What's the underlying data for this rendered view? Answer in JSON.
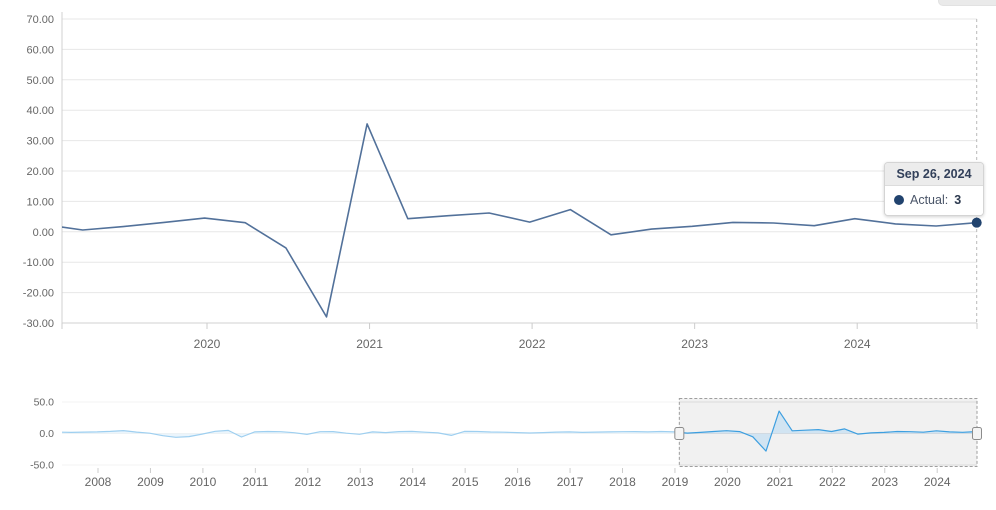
{
  "tooltip": {
    "date": "Sep 26, 2024",
    "series_label": "Actual:",
    "value": "3"
  },
  "highlighted_point": {
    "date": "2024-09-26",
    "value": 3
  },
  "colors": {
    "main_line": "#52719a",
    "marker": "#21436e",
    "nav_line": "#3d9fe0",
    "nav_fill": "#bcdcf4",
    "grid": "#e7e7e7",
    "axis": "#d0d0d0",
    "tick": "#cccccc",
    "label": "#666666",
    "crosshair": "#b9b9b9",
    "selection_border": "#9e9e9e",
    "tooltip_header_bg": "#ececec"
  },
  "chart_data": {
    "type": "line",
    "title": "",
    "legend": "none",
    "grid": "on",
    "main_chart": {
      "series_name": "Actual",
      "ylim": [
        -30,
        70
      ],
      "y_tick_labels": [
        "70.00",
        "60.00",
        "50.00",
        "40.00",
        "30.00",
        "20.00",
        "10.00",
        "0.00",
        "-10.00",
        "-20.00",
        "-30.00"
      ],
      "x_tick_labels": [
        "2020",
        "2021",
        "2022",
        "2023",
        "2024"
      ],
      "points": [
        {
          "date": "2018-12-26",
          "value": 2.5
        },
        {
          "date": "2019-03-26",
          "value": 0.6
        },
        {
          "date": "2019-06-26",
          "value": 1.7
        },
        {
          "date": "2019-09-26",
          "value": 3.1
        },
        {
          "date": "2019-12-26",
          "value": 4.5
        },
        {
          "date": "2020-03-26",
          "value": 3.0
        },
        {
          "date": "2020-06-26",
          "value": -5.3
        },
        {
          "date": "2020-09-26",
          "value": -28.0
        },
        {
          "date": "2020-12-26",
          "value": 35.5
        },
        {
          "date": "2021-03-26",
          "value": 4.3
        },
        {
          "date": "2021-06-26",
          "value": 5.3
        },
        {
          "date": "2021-09-26",
          "value": 6.2
        },
        {
          "date": "2021-12-26",
          "value": 3.2
        },
        {
          "date": "2022-03-26",
          "value": 7.3
        },
        {
          "date": "2022-06-26",
          "value": -1.0
        },
        {
          "date": "2022-09-26",
          "value": 0.9
        },
        {
          "date": "2022-12-26",
          "value": 1.8
        },
        {
          "date": "2023-03-26",
          "value": 3.1
        },
        {
          "date": "2023-06-26",
          "value": 2.9
        },
        {
          "date": "2023-09-26",
          "value": 2.0
        },
        {
          "date": "2023-12-26",
          "value": 4.3
        },
        {
          "date": "2024-03-26",
          "value": 2.6
        },
        {
          "date": "2024-06-26",
          "value": 1.9
        },
        {
          "date": "2024-09-26",
          "value": 3.0
        }
      ]
    },
    "navigator": {
      "ylim": [
        -50,
        50
      ],
      "y_tick_labels": [
        "50.0",
        "0.0",
        "-50.0"
      ],
      "x_tick_labels": [
        "2008",
        "2009",
        "2010",
        "2011",
        "2012",
        "2013",
        "2014",
        "2015",
        "2016",
        "2017",
        "2018",
        "2019",
        "2020",
        "2021",
        "2022",
        "2023",
        "2024"
      ],
      "selected_from": "2019-02-01",
      "selected_to": "2024-09-26",
      "history_points": [
        {
          "date": "2007-03-26",
          "value": 2.2
        },
        {
          "date": "2007-06-26",
          "value": 1.8
        },
        {
          "date": "2007-09-26",
          "value": 2.3
        },
        {
          "date": "2007-12-26",
          "value": 2.6
        },
        {
          "date": "2008-03-26",
          "value": 3.4
        },
        {
          "date": "2008-06-26",
          "value": 4.6
        },
        {
          "date": "2008-09-26",
          "value": 2.2
        },
        {
          "date": "2008-12-26",
          "value": 0.5
        },
        {
          "date": "2009-03-26",
          "value": -3.5
        },
        {
          "date": "2009-06-26",
          "value": -6.0
        },
        {
          "date": "2009-09-26",
          "value": -5.0
        },
        {
          "date": "2009-12-26",
          "value": -1.0
        },
        {
          "date": "2010-03-26",
          "value": 3.5
        },
        {
          "date": "2010-06-26",
          "value": 5.0
        },
        {
          "date": "2010-09-26",
          "value": -5.5
        },
        {
          "date": "2010-12-26",
          "value": 2.5
        },
        {
          "date": "2011-03-26",
          "value": 3.2
        },
        {
          "date": "2011-06-26",
          "value": 2.8
        },
        {
          "date": "2011-09-26",
          "value": 1.2
        },
        {
          "date": "2011-12-26",
          "value": -1.5
        },
        {
          "date": "2012-03-26",
          "value": 2.8
        },
        {
          "date": "2012-06-26",
          "value": 3.0
        },
        {
          "date": "2012-09-26",
          "value": 0.5
        },
        {
          "date": "2012-12-26",
          "value": -1.2
        },
        {
          "date": "2013-03-26",
          "value": 2.5
        },
        {
          "date": "2013-06-26",
          "value": 1.4
        },
        {
          "date": "2013-09-26",
          "value": 3.0
        },
        {
          "date": "2013-12-26",
          "value": 3.4
        },
        {
          "date": "2014-03-26",
          "value": 2.0
        },
        {
          "date": "2014-06-26",
          "value": 1.0
        },
        {
          "date": "2014-09-26",
          "value": -3.0
        },
        {
          "date": "2014-12-26",
          "value": 3.4
        },
        {
          "date": "2015-03-26",
          "value": 3.2
        },
        {
          "date": "2015-06-26",
          "value": 2.4
        },
        {
          "date": "2015-09-26",
          "value": 2.0
        },
        {
          "date": "2015-12-26",
          "value": 1.4
        },
        {
          "date": "2016-03-26",
          "value": 0.8
        },
        {
          "date": "2016-06-26",
          "value": 1.5
        },
        {
          "date": "2016-09-26",
          "value": 2.2
        },
        {
          "date": "2016-12-26",
          "value": 2.5
        },
        {
          "date": "2017-03-26",
          "value": 1.8
        },
        {
          "date": "2017-06-26",
          "value": 2.2
        },
        {
          "date": "2017-09-26",
          "value": 2.6
        },
        {
          "date": "2017-12-26",
          "value": 2.9
        },
        {
          "date": "2018-03-26",
          "value": 3.0
        },
        {
          "date": "2018-06-26",
          "value": 2.6
        },
        {
          "date": "2018-09-26",
          "value": 3.2
        }
      ]
    }
  }
}
